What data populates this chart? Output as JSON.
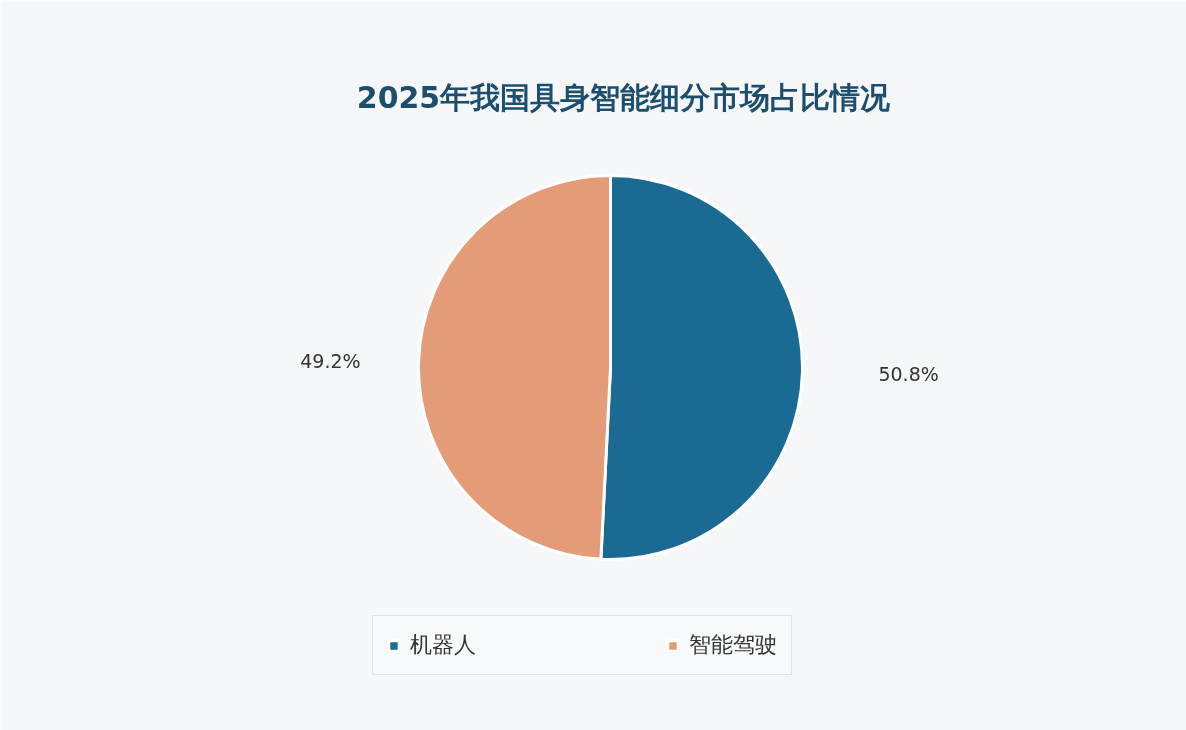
{
  "chart_data": {
    "type": "pie",
    "title": "2025年我国具身智能细分市场占比情况",
    "categories": [
      "机器人",
      "智能驾驶"
    ],
    "values": [
      50.8,
      49.2
    ],
    "colors": [
      "#1b6a93",
      "#e49c78"
    ],
    "value_labels": [
      "50.8%",
      "49.2%"
    ],
    "legend": "bottom"
  }
}
